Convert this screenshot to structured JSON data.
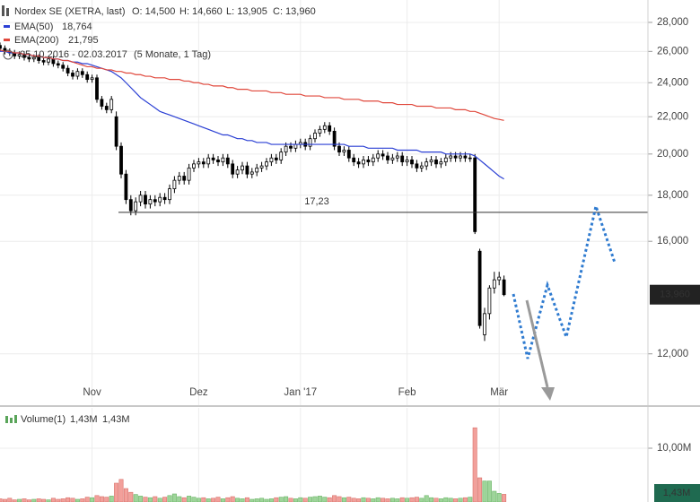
{
  "chart_data": [
    {
      "type": "candlestick",
      "title": "Nordex SE (XETRA, last)",
      "ohlc_labels": [
        "O: 14,500",
        "H: 14,660",
        "L: 13,905",
        "C: 13,960"
      ],
      "subtitle": "05.10.2016 - 02.03.2017",
      "period": "(5 Monate, 1 Tag)",
      "categories": [
        null,
        null,
        null,
        null,
        null,
        null,
        null,
        null,
        null,
        null,
        null,
        null,
        null,
        null,
        null,
        null,
        null,
        null,
        null,
        "Nov",
        null,
        null,
        null,
        null,
        null,
        null,
        null,
        null,
        null,
        null,
        null,
        null,
        null,
        null,
        null,
        null,
        null,
        null,
        null,
        null,
        null,
        "Dez",
        null,
        null,
        null,
        null,
        null,
        null,
        null,
        null,
        null,
        null,
        null,
        null,
        null,
        null,
        null,
        null,
        null,
        null,
        null,
        null,
        "Jan '17",
        null,
        null,
        null,
        null,
        null,
        null,
        null,
        null,
        null,
        null,
        null,
        null,
        null,
        null,
        null,
        null,
        null,
        null,
        null,
        null,
        null,
        "Feb",
        null,
        null,
        null,
        null,
        null,
        null,
        null,
        null,
        null,
        null,
        null,
        null,
        null,
        null,
        null,
        null,
        null,
        null,
        "Mär",
        null
      ],
      "candles": [
        [
          26.4,
          26.6,
          26.0,
          26.2
        ],
        [
          26.2,
          26.4,
          25.8,
          26.0
        ],
        [
          26.0,
          26.2,
          25.7,
          25.9
        ],
        [
          25.9,
          26.1,
          25.5,
          25.7
        ],
        [
          25.7,
          26.0,
          25.5,
          25.8
        ],
        [
          25.8,
          26.0,
          25.4,
          25.6
        ],
        [
          25.6,
          25.8,
          25.3,
          25.5
        ],
        [
          25.5,
          25.8,
          25.3,
          25.6
        ],
        [
          25.6,
          25.8,
          25.2,
          25.4
        ],
        [
          25.4,
          25.6,
          25.1,
          25.3
        ],
        [
          25.3,
          25.7,
          25.1,
          25.5
        ],
        [
          25.5,
          25.7,
          25.0,
          25.2
        ],
        [
          25.2,
          25.4,
          24.9,
          25.1
        ],
        [
          25.1,
          25.3,
          24.7,
          24.9
        ],
        [
          24.9,
          25.1,
          24.4,
          24.6
        ],
        [
          24.6,
          24.8,
          24.2,
          24.4
        ],
        [
          24.4,
          24.9,
          24.2,
          24.7
        ],
        [
          24.7,
          24.9,
          24.3,
          24.5
        ],
        [
          24.5,
          24.7,
          24.0,
          24.2
        ],
        [
          24.2,
          24.5,
          24.0,
          24.3
        ],
        [
          24.3,
          24.5,
          22.8,
          23.0
        ],
        [
          23.0,
          23.2,
          22.4,
          22.6
        ],
        [
          22.6,
          22.8,
          22.2,
          22.4
        ],
        [
          22.4,
          23.2,
          22.2,
          23.0
        ],
        [
          22.0,
          22.3,
          20.2,
          20.4
        ],
        [
          20.4,
          20.6,
          18.8,
          19.0
        ],
        [
          19.0,
          19.2,
          17.6,
          17.8
        ],
        [
          17.8,
          18.0,
          17.1,
          17.3
        ],
        [
          17.3,
          17.9,
          17.1,
          17.7
        ],
        [
          17.7,
          18.2,
          17.5,
          18.0
        ],
        [
          18.0,
          18.2,
          17.4,
          17.6
        ],
        [
          17.6,
          18.0,
          17.4,
          17.8
        ],
        [
          17.8,
          18.0,
          17.5,
          17.7
        ],
        [
          17.7,
          18.1,
          17.5,
          17.9
        ],
        [
          17.9,
          18.1,
          17.6,
          17.8
        ],
        [
          17.8,
          18.5,
          17.6,
          18.3
        ],
        [
          18.3,
          18.9,
          18.1,
          18.7
        ],
        [
          18.7,
          19.1,
          18.5,
          18.9
        ],
        [
          18.9,
          19.1,
          18.5,
          18.7
        ],
        [
          18.7,
          19.5,
          18.5,
          19.3
        ],
        [
          19.3,
          19.7,
          19.1,
          19.5
        ],
        [
          19.5,
          19.8,
          19.3,
          19.6
        ],
        [
          19.6,
          19.8,
          19.3,
          19.5
        ],
        [
          19.5,
          20.0,
          19.3,
          19.8
        ],
        [
          19.8,
          20.0,
          19.5,
          19.7
        ],
        [
          19.7,
          19.9,
          19.4,
          19.6
        ],
        [
          19.6,
          20.0,
          19.4,
          19.8
        ],
        [
          19.8,
          20.0,
          19.3,
          19.5
        ],
        [
          19.5,
          19.7,
          18.8,
          19.0
        ],
        [
          19.0,
          19.4,
          18.8,
          19.2
        ],
        [
          19.2,
          19.6,
          19.0,
          19.4
        ],
        [
          19.4,
          19.6,
          18.8,
          19.0
        ],
        [
          19.0,
          19.3,
          18.8,
          19.1
        ],
        [
          19.1,
          19.5,
          18.9,
          19.3
        ],
        [
          19.3,
          19.6,
          19.1,
          19.4
        ],
        [
          19.4,
          19.8,
          19.2,
          19.6
        ],
        [
          19.6,
          20.0,
          19.4,
          19.8
        ],
        [
          19.8,
          20.0,
          19.5,
          19.7
        ],
        [
          19.7,
          20.3,
          19.5,
          20.1
        ],
        [
          20.1,
          20.6,
          19.9,
          20.4
        ],
        [
          20.4,
          20.6,
          20.1,
          20.3
        ],
        [
          20.3,
          20.7,
          20.1,
          20.5
        ],
        [
          20.5,
          20.8,
          20.3,
          20.6
        ],
        [
          20.6,
          20.8,
          20.2,
          20.4
        ],
        [
          20.4,
          21.0,
          20.2,
          20.8
        ],
        [
          20.8,
          21.3,
          20.6,
          21.1
        ],
        [
          21.1,
          21.5,
          20.9,
          21.3
        ],
        [
          21.3,
          21.7,
          21.1,
          21.5
        ],
        [
          21.5,
          21.7,
          21.0,
          21.2
        ],
        [
          21.2,
          21.4,
          20.2,
          20.4
        ],
        [
          20.4,
          20.6,
          19.9,
          20.1
        ],
        [
          20.1,
          20.4,
          19.9,
          20.2
        ],
        [
          20.2,
          20.4,
          19.6,
          19.8
        ],
        [
          19.8,
          20.0,
          19.4,
          19.6
        ],
        [
          19.6,
          19.8,
          19.3,
          19.5
        ],
        [
          19.5,
          19.9,
          19.3,
          19.7
        ],
        [
          19.7,
          19.9,
          19.4,
          19.6
        ],
        [
          19.6,
          20.0,
          19.4,
          19.8
        ],
        [
          19.8,
          20.2,
          19.6,
          20.0
        ],
        [
          20.0,
          20.2,
          19.7,
          19.9
        ],
        [
          19.9,
          20.1,
          19.5,
          19.7
        ],
        [
          19.7,
          20.0,
          19.5,
          19.8
        ],
        [
          19.8,
          20.1,
          19.6,
          19.9
        ],
        [
          19.9,
          20.1,
          19.4,
          19.6
        ],
        [
          19.6,
          19.9,
          19.4,
          19.7
        ],
        [
          19.7,
          19.9,
          19.3,
          19.5
        ],
        [
          19.5,
          19.7,
          19.1,
          19.3
        ],
        [
          19.3,
          19.6,
          19.1,
          19.4
        ],
        [
          19.4,
          19.8,
          19.2,
          19.6
        ],
        [
          19.6,
          19.9,
          19.4,
          19.7
        ],
        [
          19.7,
          19.9,
          19.3,
          19.5
        ],
        [
          19.5,
          19.8,
          19.3,
          19.6
        ],
        [
          19.6,
          20.0,
          19.4,
          19.8
        ],
        [
          19.8,
          20.1,
          19.6,
          19.9
        ],
        [
          19.9,
          20.1,
          19.6,
          19.8
        ],
        [
          19.8,
          20.1,
          19.6,
          19.9
        ],
        [
          19.9,
          20.1,
          19.6,
          19.8
        ],
        [
          19.8,
          20.0,
          19.6,
          19.8
        ],
        [
          19.8,
          20.0,
          16.3,
          16.4
        ],
        [
          15.6,
          15.7,
          12.8,
          12.9
        ],
        [
          12.6,
          13.5,
          12.4,
          13.3
        ],
        [
          13.3,
          14.3,
          13.1,
          14.2
        ],
        [
          14.2,
          14.8,
          14.0,
          14.5
        ],
        [
          14.5,
          14.8,
          14.3,
          14.6
        ],
        [
          14.5,
          14.66,
          13.905,
          13.96
        ]
      ],
      "up_color": "#ffffff",
      "down_color": "#000000",
      "series": [
        {
          "name": "EMA(50)",
          "value_label": "18,764",
          "color": "#2a3fd4",
          "values": [
            26.0,
            26.0,
            25.9,
            25.9,
            25.9,
            25.8,
            25.8,
            25.7,
            25.7,
            25.6,
            25.6,
            25.5,
            25.5,
            25.4,
            25.4,
            25.3,
            25.3,
            25.2,
            25.2,
            25.1,
            25.0,
            24.9,
            24.8,
            24.7,
            24.5,
            24.3,
            24.0,
            23.7,
            23.4,
            23.1,
            22.9,
            22.7,
            22.5,
            22.3,
            22.2,
            22.1,
            22.0,
            21.9,
            21.8,
            21.7,
            21.6,
            21.5,
            21.4,
            21.3,
            21.2,
            21.1,
            21.0,
            21.0,
            20.9,
            20.8,
            20.8,
            20.7,
            20.7,
            20.6,
            20.6,
            20.6,
            20.5,
            20.5,
            20.5,
            20.5,
            20.5,
            20.5,
            20.5,
            20.5,
            20.5,
            20.5,
            20.5,
            20.5,
            20.5,
            20.5,
            20.5,
            20.5,
            20.4,
            20.4,
            20.4,
            20.4,
            20.3,
            20.3,
            20.3,
            20.3,
            20.3,
            20.3,
            20.2,
            20.2,
            20.2,
            20.2,
            20.2,
            20.1,
            20.1,
            20.1,
            20.1,
            20.1,
            20.0,
            20.0,
            20.0,
            20.0,
            20.0,
            20.0,
            19.9,
            19.7,
            19.5,
            19.3,
            19.1,
            18.9,
            18.764
          ]
        },
        {
          "name": "EMA(200)",
          "value_label": "21,795",
          "color": "#e0483c",
          "values": [
            26.1,
            26.0,
            26.0,
            25.9,
            25.9,
            25.8,
            25.8,
            25.7,
            25.7,
            25.6,
            25.6,
            25.5,
            25.5,
            25.4,
            25.4,
            25.3,
            25.2,
            25.1,
            25.0,
            25.0,
            24.9,
            24.9,
            24.8,
            24.8,
            24.7,
            24.7,
            24.6,
            24.6,
            24.5,
            24.5,
            24.4,
            24.4,
            24.3,
            24.3,
            24.3,
            24.2,
            24.2,
            24.2,
            24.1,
            24.1,
            24.0,
            24.0,
            23.9,
            23.9,
            23.8,
            23.8,
            23.8,
            23.7,
            23.7,
            23.6,
            23.6,
            23.6,
            23.5,
            23.5,
            23.5,
            23.5,
            23.4,
            23.4,
            23.4,
            23.3,
            23.3,
            23.3,
            23.3,
            23.2,
            23.2,
            23.2,
            23.2,
            23.1,
            23.1,
            23.1,
            23.1,
            23.0,
            23.0,
            23.0,
            23.0,
            22.9,
            22.9,
            22.9,
            22.9,
            22.8,
            22.8,
            22.8,
            22.7,
            22.7,
            22.7,
            22.7,
            22.6,
            22.6,
            22.6,
            22.6,
            22.5,
            22.5,
            22.5,
            22.5,
            22.4,
            22.4,
            22.4,
            22.3,
            22.3,
            22.2,
            22.1,
            22.0,
            21.9,
            21.85,
            21.795
          ]
        }
      ],
      "annotations": [
        {
          "value": 17.23,
          "label": "17,23"
        }
      ],
      "last": {
        "value": 13.96,
        "label": "13,960"
      },
      "log": true,
      "grid": true,
      "ylim": [
        10.5,
        29.65
      ],
      "yticks": [
        {
          "value": 12,
          "label": "12,000"
        },
        {
          "value": 16,
          "label": "16,000"
        },
        {
          "value": 18,
          "label": "18,000"
        },
        {
          "value": 20,
          "label": "20,000"
        },
        {
          "value": 22,
          "label": "22,000"
        },
        {
          "value": 24,
          "label": "24,000"
        },
        {
          "value": 26,
          "label": "26,000"
        },
        {
          "value": 28,
          "label": "28,000"
        }
      ]
    },
    {
      "type": "bar",
      "series": [
        {
          "name": "Volume(1)",
          "values": [
            0.6,
            0.5,
            0.7,
            0.4,
            0.5,
            0.6,
            0.4,
            0.5,
            0.6,
            0.5,
            0.4,
            0.7,
            0.5,
            0.6,
            0.8,
            0.7,
            0.5,
            0.6,
            0.9,
            0.8,
            1.2,
            1.0,
            0.9,
            1.1,
            3.5,
            4.2,
            2.5,
            1.8,
            1.4,
            1.1,
            0.9,
            0.8,
            1.0,
            0.7,
            0.9,
            1.2,
            1.5,
            1.0,
            0.8,
            1.1,
            0.9,
            0.7,
            0.8,
            0.6,
            0.7,
            0.9,
            0.6,
            0.8,
            1.0,
            0.7,
            0.6,
            0.8,
            0.5,
            0.6,
            0.7,
            0.5,
            0.6,
            0.8,
            0.9,
            1.0,
            0.7,
            0.6,
            0.8,
            0.7,
            0.9,
            1.0,
            1.1,
            0.9,
            0.8,
            1.2,
            1.0,
            0.8,
            0.9,
            0.7,
            0.6,
            0.8,
            0.7,
            0.6,
            0.8,
            0.7,
            0.6,
            0.7,
            0.6,
            0.8,
            0.7,
            0.8,
            0.9,
            0.7,
            1.2,
            0.8,
            0.7,
            0.6,
            0.8,
            0.7,
            0.6,
            0.7,
            0.8,
            0.9,
            13.8,
            4.5,
            3.9,
            3.9,
            2.0,
            1.6,
            1.43
          ]
        }
      ],
      "up_color": "#9ed59a",
      "down_color": "#f2a09b",
      "last": {
        "value": 1.43,
        "label": "1,43M"
      },
      "legend_colors": [
        "#e0483c",
        "#2aa3b8"
      ],
      "ylim": [
        0,
        17.5
      ],
      "yticks": [
        {
          "value": 10,
          "label": "10,00M"
        }
      ],
      "grid": true
    }
  ]
}
